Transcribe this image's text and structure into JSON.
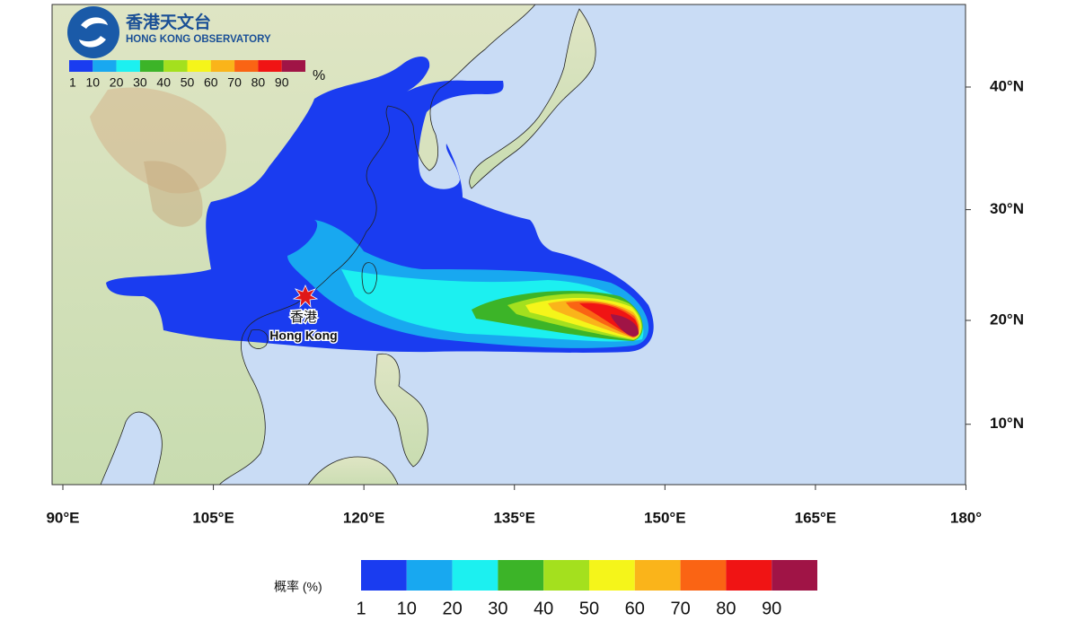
{
  "header": {
    "org_name_zh": "香港天文台",
    "org_name_en": "HONG KONG OBSERVATORY"
  },
  "map_legend": {
    "unit": "%",
    "labels": [
      1,
      10,
      20,
      30,
      40,
      50,
      60,
      70,
      80,
      90
    ]
  },
  "axes": {
    "longitude_ticks": [
      {
        "value": 90,
        "label": "90°E"
      },
      {
        "value": 105,
        "label": "105°E"
      },
      {
        "value": 120,
        "label": "120°E"
      },
      {
        "value": 135,
        "label": "135°E"
      },
      {
        "value": 150,
        "label": "150°E"
      },
      {
        "value": 165,
        "label": "165°E"
      },
      {
        "value": 180,
        "label": "180°"
      }
    ],
    "latitude_ticks": [
      {
        "value": 40,
        "label": "40°N"
      },
      {
        "value": 30,
        "label": "30°N"
      },
      {
        "value": 20,
        "label": "20°N"
      },
      {
        "value": 10,
        "label": "10°N"
      }
    ]
  },
  "place": {
    "name_zh": "香港",
    "name_en": "Hong Kong"
  },
  "legend": {
    "title": "概率 (%)",
    "labels": [
      1,
      10,
      20,
      30,
      40,
      50,
      60,
      70,
      80,
      90
    ],
    "colors": [
      "#1a3cf0",
      "#18a8f0",
      "#1cf0f0",
      "#3cb428",
      "#a4e01e",
      "#f5f51a",
      "#fab41a",
      "#fa6414",
      "#f01414",
      "#a01446"
    ]
  }
}
